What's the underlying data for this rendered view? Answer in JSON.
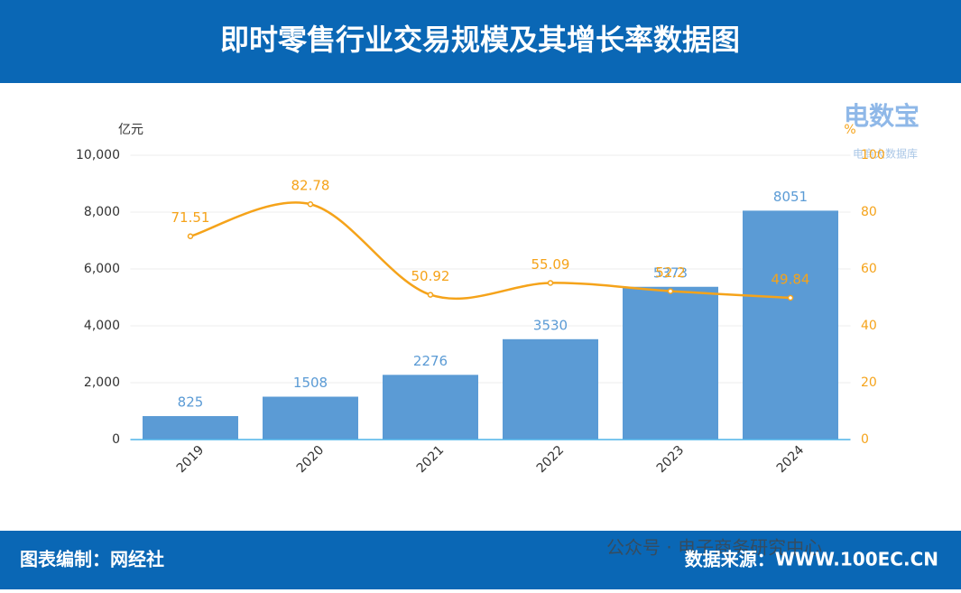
{
  "header": {
    "title": "即时零售行业交易规模及其增长率数据图"
  },
  "logo": {
    "name": "电数宝",
    "tagline": "电商大数据库"
  },
  "footer": {
    "left": "图表编制：网经社",
    "watermark": "公众号 · 电子商务研究中心",
    "right": "数据来源：WWW.100EC.CN"
  },
  "chart_data": {
    "type": "bar-line",
    "categories": [
      "2019",
      "2020",
      "2021",
      "2022",
      "2023",
      "2024"
    ],
    "y_label": "亿元",
    "y2_label": "%",
    "series": [
      {
        "type": "bar",
        "color": "#5b9bd5",
        "values": [
          825,
          1508,
          2276,
          3530,
          5373,
          8051
        ]
      },
      {
        "type": "line",
        "axis": "y2",
        "color": "#f5a31a",
        "values": [
          71.51,
          82.78,
          50.92,
          55.09,
          52.2,
          49.84
        ]
      }
    ],
    "ylim": [
      0,
      10000
    ],
    "yticks": [
      0,
      {
        "value": 2000,
        "label": "2,000"
      },
      {
        "value": 4000,
        "label": "4,000"
      },
      {
        "value": 6000,
        "label": "6,000"
      },
      {
        "value": 8000,
        "label": "8,000"
      },
      {
        "value": 10000,
        "label": "10,000"
      }
    ],
    "y2lim": [
      0,
      100
    ],
    "y2ticks": [
      0,
      20,
      40,
      60,
      80,
      100
    ],
    "grid": true
  }
}
